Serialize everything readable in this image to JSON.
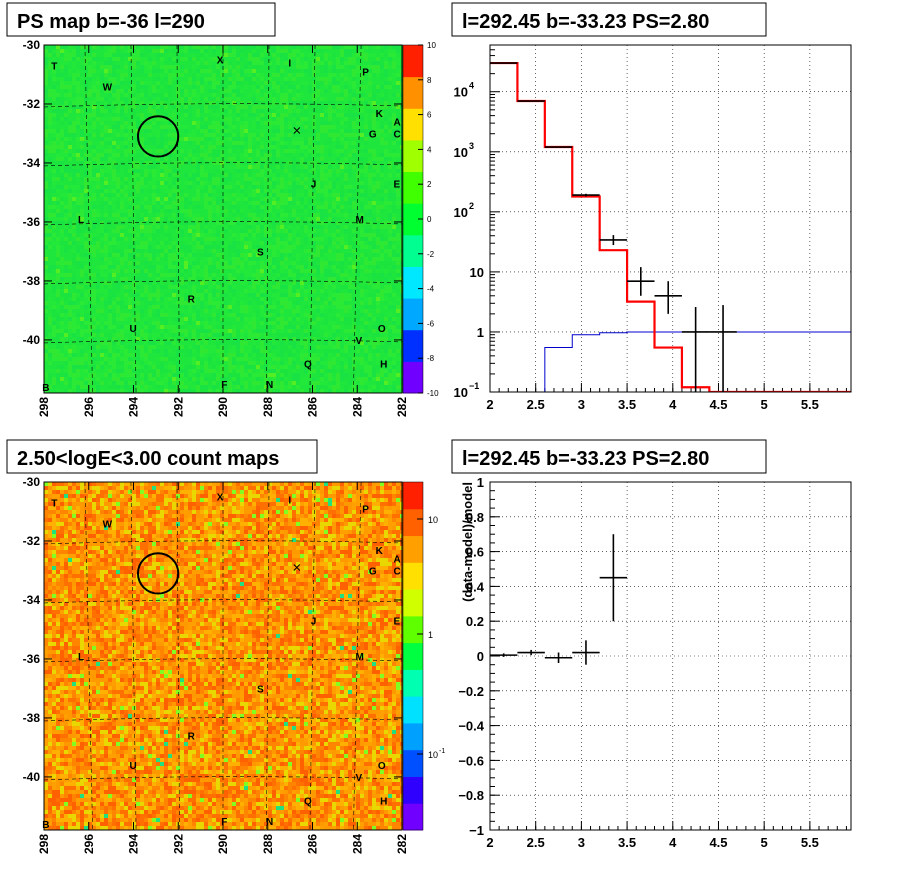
{
  "chart_data": [
    {
      "type": "heatmap",
      "title": "PS map b=-36 l=290",
      "xlim": [
        298,
        282
      ],
      "ylim": [
        -41.8,
        -30
      ],
      "x_ticks": [
        "298",
        "296",
        "294",
        "292",
        "290",
        "288",
        "286",
        "284",
        "282"
      ],
      "y_ticks": [
        "-30",
        "-32",
        "-34",
        "-36",
        "-38",
        "-40"
      ],
      "z_range": [
        -10,
        10
      ],
      "z_ticks": [
        "10",
        "8",
        "6",
        "4",
        "2",
        "0",
        "-2",
        "-4",
        "-6",
        "-8",
        "-10"
      ],
      "colormap": [
        "#7000ff",
        "#0030ff",
        "#00a8ff",
        "#00e8ff",
        "#00ff90",
        "#00ff30",
        "#40ff00",
        "#a0ff00",
        "#ffe000",
        "#ff9000",
        "#ff2000"
      ],
      "field_color": "#1ee63c",
      "circle": {
        "l": 292.9,
        "b": -33.1,
        "r": 0.5
      },
      "cross": {
        "l": 286.7,
        "b": -32.9
      },
      "source_labels": [
        {
          "t": "T",
          "l": 297.5,
          "b": -30.7
        },
        {
          "t": "X",
          "l": 290.1,
          "b": -30.5
        },
        {
          "t": "I",
          "l": 286.9,
          "b": -30.6
        },
        {
          "t": "P",
          "l": 283.6,
          "b": -30.9
        },
        {
          "t": "W",
          "l": 295.2,
          "b": -31.4
        },
        {
          "t": "K",
          "l": 283.0,
          "b": -32.3
        },
        {
          "t": "A",
          "l": 282.2,
          "b": -32.6
        },
        {
          "t": "G",
          "l": 283.3,
          "b": -33.0
        },
        {
          "t": "C",
          "l": 282.2,
          "b": -33.0
        },
        {
          "t": "J",
          "l": 285.9,
          "b": -34.7
        },
        {
          "t": "E",
          "l": 282.2,
          "b": -34.7
        },
        {
          "t": "L",
          "l": 296.3,
          "b": -35.9
        },
        {
          "t": "M",
          "l": 283.9,
          "b": -35.9
        },
        {
          "t": "S",
          "l": 288.3,
          "b": -37.0
        },
        {
          "t": "R",
          "l": 291.4,
          "b": -38.6
        },
        {
          "t": "U",
          "l": 294.0,
          "b": -39.6
        },
        {
          "t": "O",
          "l": 282.9,
          "b": -39.6
        },
        {
          "t": "V",
          "l": 283.9,
          "b": -40.0
        },
        {
          "t": "Q",
          "l": 286.2,
          "b": -40.8
        },
        {
          "t": "H",
          "l": 282.8,
          "b": -40.8
        },
        {
          "t": "B",
          "l": 297.9,
          "b": -41.6
        },
        {
          "t": "F",
          "l": 289.9,
          "b": -41.5
        },
        {
          "t": "N",
          "l": 287.9,
          "b": -41.5
        }
      ]
    },
    {
      "type": "line",
      "title": "l=292.45 b=-33.23 PS=2.80",
      "xlim": [
        2,
        5.95
      ],
      "ylim": [
        0.1,
        60000
      ],
      "yscale": "log",
      "grid": true,
      "x_ticks": [
        "2",
        "2.5",
        "3",
        "3.5",
        "4",
        "4.5",
        "5",
        "5.5"
      ],
      "y_ticks": [
        {
          "v": 10000,
          "t": "10",
          "e": "4"
        },
        {
          "v": 1000,
          "t": "10",
          "e": "3"
        },
        {
          "v": 100,
          "t": "10",
          "e": "2"
        },
        {
          "v": 10,
          "t": "10",
          "e": ""
        },
        {
          "v": 1,
          "t": "1",
          "e": ""
        },
        {
          "v": 0.1,
          "t": "10",
          "e": "−1"
        }
      ],
      "model_red": {
        "color": "#ff0000",
        "edges": [
          2,
          2.3,
          2.6,
          2.9,
          3.2,
          3.5,
          3.8,
          4.1,
          4.4,
          5.95
        ],
        "values": [
          30000,
          7000,
          1200,
          180,
          23,
          3.2,
          0.55,
          0.12,
          0.1
        ]
      },
      "model_blue": {
        "color": "#0000cc",
        "edges": [
          2,
          2.3,
          2.6,
          2.9,
          3.2,
          3.5,
          3.8,
          4.1,
          4.4,
          5.95
        ],
        "values": [
          0.0005,
          0.1,
          0.55,
          0.9,
          0.97,
          1.0,
          1.0,
          1.0,
          1.0
        ]
      },
      "data_points": [
        {
          "x": 2.15,
          "xw": 0.15,
          "y": 30000,
          "ylo": 30000,
          "yhi": 30000
        },
        {
          "x": 2.45,
          "xw": 0.15,
          "y": 7000,
          "ylo": 7000,
          "yhi": 7000
        },
        {
          "x": 2.75,
          "xw": 0.15,
          "y": 1200,
          "ylo": 1200,
          "yhi": 1200
        },
        {
          "x": 3.05,
          "xw": 0.15,
          "y": 190,
          "ylo": 180,
          "yhi": 200
        },
        {
          "x": 3.35,
          "xw": 0.15,
          "y": 34,
          "ylo": 28,
          "yhi": 41
        },
        {
          "x": 3.65,
          "xw": 0.15,
          "y": 7,
          "ylo": 4,
          "yhi": 12
        },
        {
          "x": 3.95,
          "xw": 0.15,
          "y": 4,
          "ylo": 2,
          "yhi": 7
        },
        {
          "x": 4.25,
          "xw": 0.15,
          "y": 1,
          "ylo": 0.1,
          "yhi": 2.6
        },
        {
          "x": 4.55,
          "xw": 0.15,
          "y": 1,
          "ylo": 0.1,
          "yhi": 2.8
        }
      ]
    },
    {
      "type": "heatmap",
      "title": "2.50<logE<3.00 count maps",
      "xlim": [
        298,
        282
      ],
      "ylim": [
        -41.8,
        -30
      ],
      "x_ticks": [
        "298",
        "296",
        "294",
        "292",
        "290",
        "288",
        "286",
        "284",
        "282"
      ],
      "y_ticks": [
        "-30",
        "-32",
        "-34",
        "-36",
        "-38",
        "-40"
      ],
      "z_scale": "log",
      "z_ticks": [
        "10",
        "1",
        "10"
      ],
      "z_tick_exps": [
        "",
        "",
        "-1"
      ],
      "colormap": [
        "#7000ff",
        "#3000ff",
        "#0050ff",
        "#00a0ff",
        "#00e0ff",
        "#00ffb0",
        "#00ff40",
        "#60ff00",
        "#d0ff00",
        "#ffe000",
        "#ffa000",
        "#ff6000",
        "#ff2000"
      ],
      "cell_palette": [
        "#ff9900",
        "#ff8400",
        "#ff7000",
        "#ffb000",
        "#ff6000",
        "#e8d800",
        "#ffa000"
      ]
    },
    {
      "type": "scatter",
      "title": "l=292.45 b=-33.23 PS=2.80",
      "xlim": [
        2,
        5.95
      ],
      "ylim": [
        -1,
        1
      ],
      "ylabel": "(data-model)/model",
      "grid": true,
      "x_ticks": [
        "2",
        "2.5",
        "3",
        "3.5",
        "4",
        "4.5",
        "5",
        "5.5"
      ],
      "y_ticks": [
        "1",
        "0.8",
        "0.6",
        "0.4",
        "0.2",
        "0",
        "−0.2",
        "−0.4",
        "−0.6",
        "−0.8",
        "−1"
      ],
      "data_points": [
        {
          "x": 2.15,
          "xw": 0.15,
          "y": 0.005,
          "err": 0.01
        },
        {
          "x": 2.45,
          "xw": 0.15,
          "y": 0.02,
          "err": 0.015
        },
        {
          "x": 2.75,
          "xw": 0.15,
          "y": -0.01,
          "err": 0.03
        },
        {
          "x": 3.05,
          "xw": 0.15,
          "y": 0.02,
          "err": 0.07
        },
        {
          "x": 3.35,
          "xw": 0.15,
          "y": 0.45,
          "err": 0.25
        }
      ]
    }
  ]
}
